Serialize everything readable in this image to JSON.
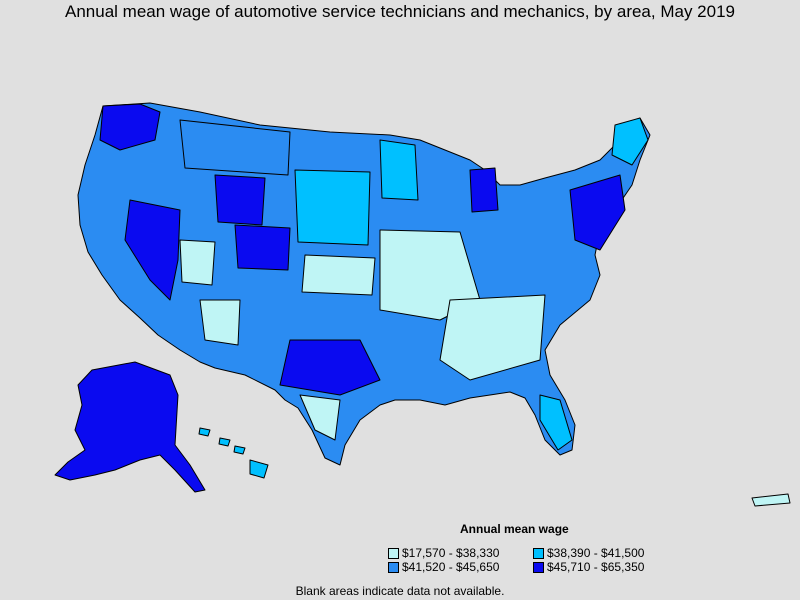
{
  "title": "Annual mean wage of automotive service technicians and mechanics, by area, May 2019",
  "legend": {
    "title": "Annual mean wage",
    "items": [
      {
        "label": "$17,570 - $38,330",
        "color": "#bff5f5"
      },
      {
        "label": "$38,390 - $41,500",
        "color": "#00c0ff"
      },
      {
        "label": "$41,520 - $45,650",
        "color": "#2b8cf2"
      },
      {
        "label": "$45,710 - $65,350",
        "color": "#0a0af0"
      }
    ]
  },
  "note": "Blank areas indicate data not available."
}
